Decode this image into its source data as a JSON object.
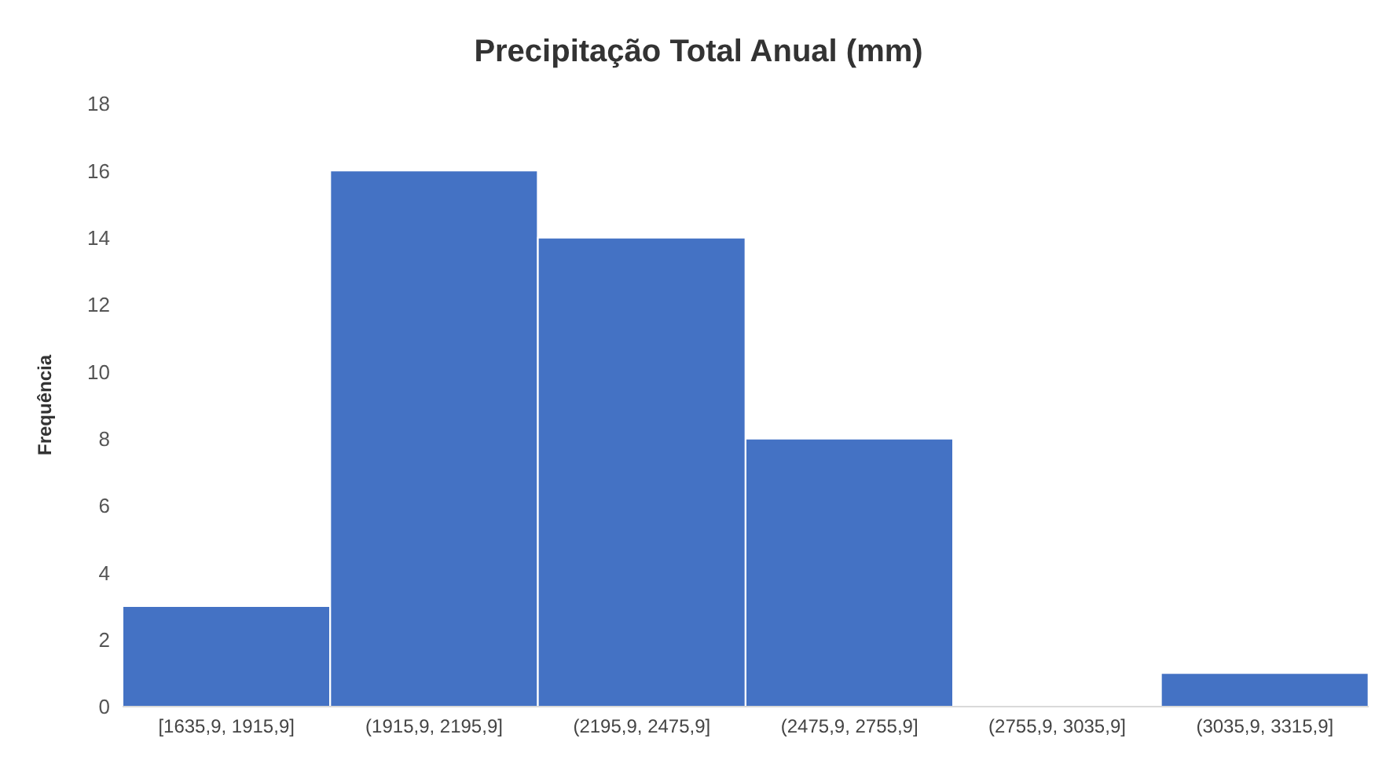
{
  "chart_data": {
    "type": "bar",
    "title": "Precipitação Total Anual (mm)",
    "ylabel": "Frequência",
    "categories": [
      "[1635,9, 1915,9]",
      "(1915,9, 2195,9]",
      "(2195,9, 2475,9]",
      "(2475,9, 2755,9]",
      "(2755,9, 3035,9]",
      "(3035,9, 3315,9]"
    ],
    "values": [
      3,
      16,
      14,
      8,
      0,
      1
    ],
    "color": "#4472c4",
    "ylim": [
      0,
      18
    ],
    "yticks": [
      0,
      2,
      4,
      6,
      8,
      10,
      12,
      14,
      16,
      18
    ],
    "grid": false,
    "legend": false
  }
}
